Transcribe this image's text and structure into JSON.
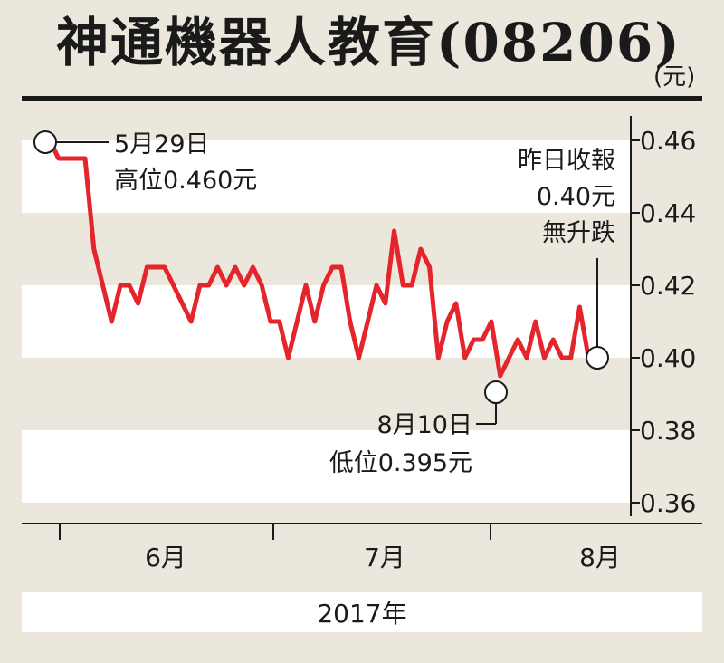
{
  "chart_data": {
    "type": "line",
    "title": "神通機器人教育(08206)",
    "unit": "(元)",
    "ylim": [
      0.355,
      0.462
    ],
    "yticks": [
      "0.46",
      "0.44",
      "0.42",
      "0.40",
      "0.38",
      "0.36"
    ],
    "ytick_values": [
      0.46,
      0.44,
      0.42,
      0.4,
      0.38,
      0.36
    ],
    "xticks": [
      "6月",
      "7月",
      "8月"
    ],
    "xlabel": "2017年",
    "series": [
      {
        "values": [
          0.46,
          0.455,
          0.455,
          0.455,
          0.455,
          0.43,
          0.42,
          0.41,
          0.42,
          0.42,
          0.415,
          0.425,
          0.425,
          0.425,
          0.42,
          0.415,
          0.41,
          0.42,
          0.42,
          0.425,
          0.42,
          0.425,
          0.42,
          0.425,
          0.42,
          0.41,
          0.41,
          0.4,
          0.41,
          0.42,
          0.41,
          0.42,
          0.425,
          0.425,
          0.41,
          0.4,
          0.41,
          0.42,
          0.415,
          0.435,
          0.42,
          0.42,
          0.43,
          0.425,
          0.4,
          0.41,
          0.415,
          0.4,
          0.405,
          0.405,
          0.41,
          0.395,
          0.4,
          0.405,
          0.4,
          0.41,
          0.4,
          0.405,
          0.4,
          0.4,
          0.414,
          0.4,
          0.4
        ],
        "color": "#e4252c"
      }
    ],
    "annotations": {
      "high": {
        "date": "5月29日",
        "text": "高位0.460元",
        "value": 0.46
      },
      "low": {
        "date": "8月10日",
        "text": "低位0.395元",
        "value": 0.395
      },
      "last": {
        "line1": "昨日收報",
        "line2": "0.40元",
        "line3": "無升跌",
        "value": 0.4
      }
    },
    "grid": "alternating bands"
  }
}
